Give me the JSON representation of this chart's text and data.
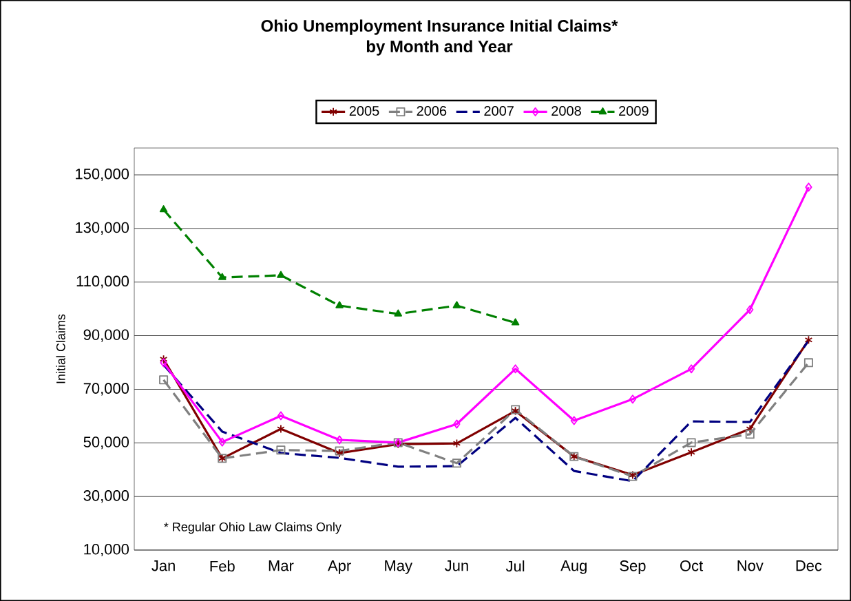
{
  "chart_data": {
    "type": "line",
    "title": "Ohio Unemployment Insurance Initial Claims*\nby Month and Year",
    "ylabel": "Initial Claims",
    "categories": [
      "Jan",
      "Feb",
      "Mar",
      "Apr",
      "May",
      "Jun",
      "Jul",
      "Aug",
      "Sep",
      "Oct",
      "Nov",
      "Dec"
    ],
    "series": [
      {
        "name": "2005",
        "color": "#800000",
        "marker": "cross",
        "line_style": "solid",
        "values": [
          81200,
          44200,
          55200,
          46200,
          49500,
          49800,
          61900,
          44900,
          38000,
          46500,
          55200,
          88400
        ]
      },
      {
        "name": "2006",
        "color": "#808080",
        "marker": "square",
        "line_style": "dashed",
        "values": [
          73500,
          44200,
          47300,
          47000,
          50100,
          42400,
          62400,
          44900,
          37500,
          50100,
          53200,
          79900
        ]
      },
      {
        "name": "2007",
        "color": "#000080",
        "marker": "none",
        "line_style": "dashed",
        "values": [
          79100,
          54200,
          46200,
          44400,
          41100,
          41300,
          59300,
          39500,
          35700,
          58000,
          57800,
          88100
        ]
      },
      {
        "name": "2008",
        "color": "#ff00ff",
        "marker": "diamond",
        "line_style": "solid",
        "values": [
          79900,
          50300,
          60100,
          51100,
          50100,
          57000,
          77600,
          58300,
          66300,
          77600,
          99700,
          145400
        ]
      },
      {
        "name": "2009",
        "color": "#008000",
        "marker": "triangle",
        "line_style": "dashed",
        "values": [
          137000,
          111700,
          112500,
          101200,
          98100,
          101200,
          94800,
          null,
          null,
          null,
          null,
          null
        ]
      }
    ],
    "ylim": [
      10000,
      160000
    ],
    "yticks": [
      {
        "value": 10000,
        "label": "10,000"
      },
      {
        "value": 30000,
        "label": "30,000"
      },
      {
        "value": 50000,
        "label": "50,000"
      },
      {
        "value": 70000,
        "label": "70,000"
      },
      {
        "value": 90000,
        "label": "90,000"
      },
      {
        "value": 110000,
        "label": "110,000"
      },
      {
        "value": 130000,
        "label": "130,000"
      },
      {
        "value": 150000,
        "label": "150,000"
      }
    ],
    "grid": "y",
    "legend": "top",
    "annotations": [
      "* Regular Ohio Law Claims Only"
    ]
  }
}
